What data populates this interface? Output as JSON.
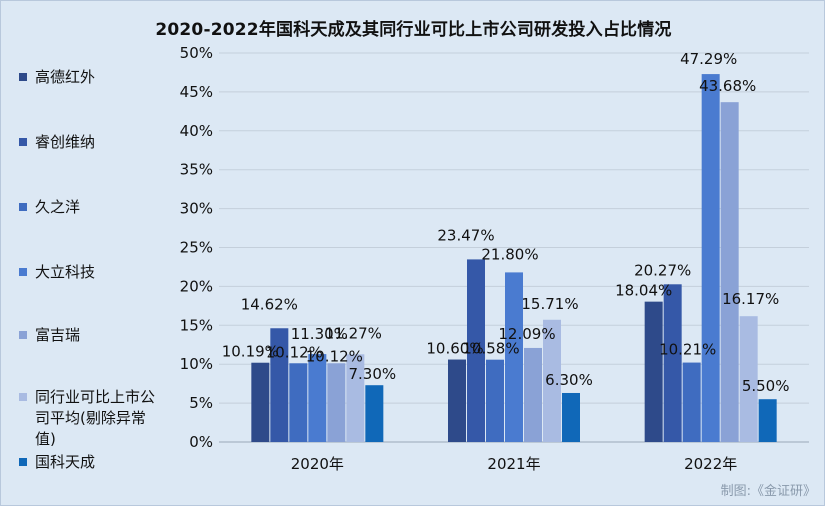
{
  "chart_data": {
    "type": "bar",
    "title": "2020-2022年国科天成及其同行业可比上市公司研发投入占比情况",
    "categories": [
      "2020年",
      "2021年",
      "2022年"
    ],
    "ylim": [
      0,
      50
    ],
    "yticks": [
      0,
      5,
      10,
      15,
      20,
      25,
      30,
      35,
      40,
      45,
      50
    ],
    "ytick_labels": [
      "0%",
      "5%",
      "10%",
      "15%",
      "20%",
      "25%",
      "30%",
      "35%",
      "40%",
      "45%",
      "50%"
    ],
    "grid": true,
    "legend_position": "left",
    "series": [
      {
        "name": "高德红外",
        "color": "#2e4a8a",
        "values": [
          10.19,
          10.6,
          18.04
        ],
        "labels": [
          "10.19%",
          "10.60%",
          "18.04%"
        ]
      },
      {
        "name": "睿创维纳",
        "color": "#3558a8",
        "values": [
          14.62,
          23.47,
          20.27
        ],
        "labels": [
          "14.62%",
          "23.47%",
          "20.27%"
        ]
      },
      {
        "name": "久之洋",
        "color": "#3f6cc0",
        "values": [
          10.12,
          10.58,
          10.21
        ],
        "labels": [
          "10.12%",
          "10.58%",
          "10.21%"
        ]
      },
      {
        "name": "大立科技",
        "color": "#4a7bd0",
        "values": [
          11.3,
          21.8,
          47.29
        ],
        "labels": [
          "11.30%",
          "21.80%",
          "47.29%"
        ]
      },
      {
        "name": "富吉瑞",
        "color": "#8aa2d6",
        "values": [
          10.12,
          12.09,
          43.68
        ],
        "labels": [
          "10.12%",
          "12.09%",
          "43.68%"
        ]
      },
      {
        "name": "同行业可比上市公司平均(剔除异常值)",
        "color": "#a9bbe2",
        "values": [
          11.27,
          15.71,
          16.17
        ],
        "labels": [
          "11.27%",
          "15.71%",
          "16.17%"
        ]
      },
      {
        "name": "国科天成",
        "color": "#1068b8",
        "values": [
          7.3,
          6.3,
          5.5
        ],
        "labels": [
          "7.30%",
          "6.30%",
          "5.50%"
        ]
      }
    ]
  },
  "legend": {
    "items": [
      {
        "label": "高德红外",
        "color": "#2e4a8a"
      },
      {
        "label": "睿创维纳",
        "color": "#3558a8"
      },
      {
        "label": "久之洋",
        "color": "#3f6cc0"
      },
      {
        "label": "大立科技",
        "color": "#4a7bd0"
      },
      {
        "label": "富吉瑞",
        "color": "#8aa2d6"
      },
      {
        "label": "同行业可比上市公司平均(剔除异常值)",
        "color": "#a9bbe2"
      },
      {
        "label": "国科天成",
        "color": "#1068b8"
      }
    ]
  },
  "credit": "制图:《金证研》"
}
